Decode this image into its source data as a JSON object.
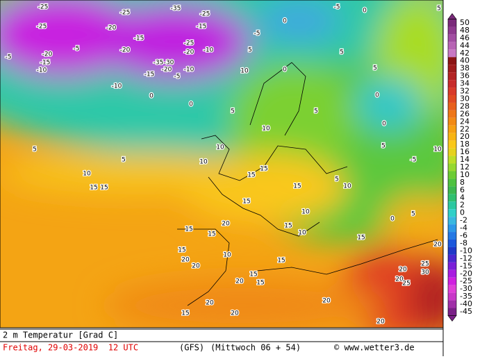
{
  "footer": {
    "variable": "2 m Temperatur [Grad C]",
    "date": "Freitag, 29-03-2019  12 UTC",
    "model": "(GFS)",
    "run": "(Mittwoch 06 + 54)",
    "source": "© www.wetter3.de"
  },
  "colorbar": {
    "labels": [
      50,
      48,
      46,
      44,
      42,
      40,
      38,
      36,
      34,
      32,
      30,
      28,
      26,
      24,
      22,
      20,
      18,
      16,
      14,
      12,
      10,
      8,
      6,
      4,
      2,
      0,
      -2,
      -4,
      -6,
      -8,
      -10,
      -12,
      -15,
      -20,
      -25,
      -30,
      -35,
      -40,
      -45
    ],
    "colors": [
      "#7a2a7a",
      "#8e3a8e",
      "#a24ea2",
      "#b764b4",
      "#c878c4",
      "#8c1414",
      "#a01c1c",
      "#b42424",
      "#c82c2c",
      "#d83a2a",
      "#e04a22",
      "#e8601c",
      "#ee7618",
      "#f28a14",
      "#f6a012",
      "#f8b412",
      "#fac81a",
      "#e6d21e",
      "#bede28",
      "#96d830",
      "#6ccc34",
      "#4ec240",
      "#3cb850",
      "#30c070",
      "#2cc8a0",
      "#30d0c8",
      "#38b8e0",
      "#2c98e8",
      "#2478e4",
      "#1c58dc",
      "#2038c8",
      "#4a28d0",
      "#7a20d8",
      "#a81ce0",
      "#d020e0",
      "#e040d8",
      "#c838c8",
      "#a030a8",
      "#7a2088"
    ]
  },
  "map": {
    "labels": [
      -25,
      -25,
      -20,
      -15,
      -10,
      -5,
      -5,
      -25,
      -20,
      -15,
      -20,
      -35,
      -30,
      -20,
      -15,
      -10,
      -35,
      -25,
      -15,
      -25,
      -20,
      -10,
      -5,
      0,
      -5,
      5,
      0,
      0,
      -10,
      0,
      -5,
      0,
      5,
      10,
      5,
      0,
      5,
      0,
      10,
      -5,
      5,
      5,
      10,
      15,
      15,
      10,
      5,
      5,
      0,
      5,
      15,
      20,
      15,
      15,
      20,
      20,
      10,
      15,
      15,
      20,
      15,
      20,
      25,
      30,
      20,
      25,
      20,
      20,
      15,
      20,
      20,
      15,
      10,
      15,
      10,
      15,
      15,
      10,
      10,
      15,
      15,
      20,
      5,
      5,
      10
    ]
  }
}
